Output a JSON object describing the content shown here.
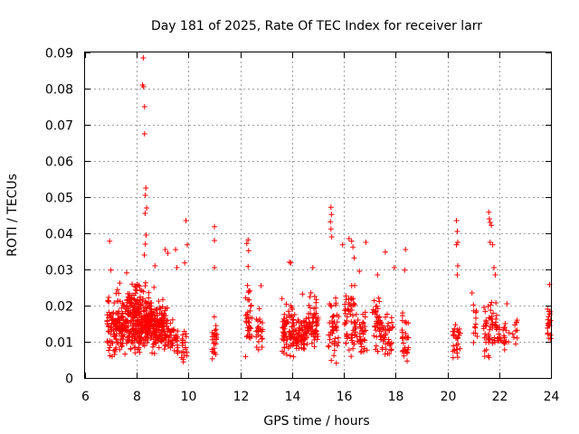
{
  "chart_data": {
    "type": "scatter",
    "title": "Day 181 of 2025, Rate Of TEC Index for receiver larr",
    "xlabel": "GPS time / hours",
    "ylabel": "ROTI / TECUs",
    "xlim": [
      6,
      24
    ],
    "ylim": [
      0,
      0.09
    ],
    "xticks": [
      6,
      8,
      10,
      12,
      14,
      16,
      18,
      20,
      22,
      24
    ],
    "xtick_labels": [
      "6",
      "8",
      "10",
      "12",
      "14",
      "16",
      "18",
      "20",
      "22",
      "24"
    ],
    "yticks": [
      0,
      0.01,
      0.02,
      0.03,
      0.04,
      0.05,
      0.06,
      0.07,
      0.08,
      0.09
    ],
    "ytick_labels": [
      "0",
      "0.01",
      "0.02",
      "0.03",
      "0.04",
      "0.05",
      "0.06",
      "0.07",
      "0.08",
      "0.09"
    ],
    "grid": true,
    "marker": "plus",
    "color": "#ff0000",
    "series": [
      {
        "name": "ROTI",
        "clusters": [
          {
            "x_start": 6.85,
            "x_end": 7.2,
            "y_min": 0.003,
            "y_max": 0.03,
            "count": 60
          },
          {
            "x_start": 7.2,
            "x_end": 7.6,
            "y_min": 0.005,
            "y_max": 0.028,
            "count": 90
          },
          {
            "x_start": 7.6,
            "x_end": 8.0,
            "y_min": 0.005,
            "y_max": 0.032,
            "count": 120
          },
          {
            "x_start": 8.0,
            "x_end": 8.4,
            "y_min": 0.005,
            "y_max": 0.03,
            "count": 130
          },
          {
            "x_start": 8.4,
            "x_end": 8.8,
            "y_min": 0.005,
            "y_max": 0.027,
            "count": 110
          },
          {
            "x_start": 8.8,
            "x_end": 9.2,
            "y_min": 0.005,
            "y_max": 0.025,
            "count": 80
          },
          {
            "x_start": 9.2,
            "x_end": 9.6,
            "y_min": 0.005,
            "y_max": 0.02,
            "count": 40
          },
          {
            "x_start": 9.7,
            "x_end": 9.95,
            "y_min": 0.003,
            "y_max": 0.018,
            "count": 20
          },
          {
            "x_start": 10.9,
            "x_end": 11.1,
            "y_min": 0.004,
            "y_max": 0.018,
            "count": 25
          },
          {
            "x_start": 12.2,
            "x_end": 12.45,
            "y_min": 0.005,
            "y_max": 0.03,
            "count": 35
          },
          {
            "x_start": 12.6,
            "x_end": 12.9,
            "y_min": 0.006,
            "y_max": 0.02,
            "count": 25
          },
          {
            "x_start": 13.6,
            "x_end": 14.1,
            "y_min": 0.005,
            "y_max": 0.023,
            "count": 80
          },
          {
            "x_start": 14.1,
            "x_end": 14.6,
            "y_min": 0.006,
            "y_max": 0.02,
            "count": 70
          },
          {
            "x_start": 14.6,
            "x_end": 15.0,
            "y_min": 0.006,
            "y_max": 0.026,
            "count": 60
          },
          {
            "x_start": 15.4,
            "x_end": 15.8,
            "y_min": 0.003,
            "y_max": 0.026,
            "count": 45
          },
          {
            "x_start": 16.0,
            "x_end": 16.5,
            "y_min": 0.004,
            "y_max": 0.03,
            "count": 60
          },
          {
            "x_start": 16.5,
            "x_end": 16.9,
            "y_min": 0.005,
            "y_max": 0.02,
            "count": 35
          },
          {
            "x_start": 17.1,
            "x_end": 17.5,
            "y_min": 0.004,
            "y_max": 0.027,
            "count": 45
          },
          {
            "x_start": 17.5,
            "x_end": 17.9,
            "y_min": 0.004,
            "y_max": 0.02,
            "count": 35
          },
          {
            "x_start": 18.2,
            "x_end": 18.5,
            "y_min": 0.003,
            "y_max": 0.022,
            "count": 30
          },
          {
            "x_start": 20.2,
            "x_end": 20.5,
            "y_min": 0.004,
            "y_max": 0.02,
            "count": 30
          },
          {
            "x_start": 21.0,
            "x_end": 21.15,
            "y_min": 0.008,
            "y_max": 0.024,
            "count": 12
          },
          {
            "x_start": 21.4,
            "x_end": 21.9,
            "y_min": 0.005,
            "y_max": 0.025,
            "count": 55
          },
          {
            "x_start": 21.9,
            "x_end": 22.4,
            "y_min": 0.006,
            "y_max": 0.02,
            "count": 30
          },
          {
            "x_start": 22.5,
            "x_end": 22.7,
            "y_min": 0.009,
            "y_max": 0.018,
            "count": 10
          },
          {
            "x_start": 23.85,
            "x_end": 24.0,
            "y_min": 0.007,
            "y_max": 0.025,
            "count": 20
          }
        ],
        "outliers": [
          {
            "x": 8.25,
            "y": 0.0885
          },
          {
            "x": 8.22,
            "y": 0.081
          },
          {
            "x": 8.26,
            "y": 0.0805
          },
          {
            "x": 8.3,
            "y": 0.075
          },
          {
            "x": 8.3,
            "y": 0.0675
          },
          {
            "x": 8.35,
            "y": 0.0525
          },
          {
            "x": 8.33,
            "y": 0.0505
          },
          {
            "x": 8.38,
            "y": 0.047
          },
          {
            "x": 8.32,
            "y": 0.0455
          },
          {
            "x": 8.36,
            "y": 0.0395
          },
          {
            "x": 8.33,
            "y": 0.037
          },
          {
            "x": 8.29,
            "y": 0.034
          },
          {
            "x": 6.95,
            "y": 0.0378
          },
          {
            "x": 7.0,
            "y": 0.0298
          },
          {
            "x": 8.7,
            "y": 0.031
          },
          {
            "x": 9.1,
            "y": 0.0355
          },
          {
            "x": 9.2,
            "y": 0.0345
          },
          {
            "x": 9.5,
            "y": 0.0355
          },
          {
            "x": 9.55,
            "y": 0.0305
          },
          {
            "x": 9.9,
            "y": 0.0435
          },
          {
            "x": 9.95,
            "y": 0.0368
          },
          {
            "x": 9.85,
            "y": 0.0318
          },
          {
            "x": 11.0,
            "y": 0.0418
          },
          {
            "x": 11.0,
            "y": 0.038
          },
          {
            "x": 11.0,
            "y": 0.0305
          },
          {
            "x": 12.25,
            "y": 0.0372
          },
          {
            "x": 12.3,
            "y": 0.0382
          },
          {
            "x": 12.32,
            "y": 0.0352
          },
          {
            "x": 12.3,
            "y": 0.0308
          },
          {
            "x": 12.8,
            "y": 0.0255
          },
          {
            "x": 13.9,
            "y": 0.032
          },
          {
            "x": 13.95,
            "y": 0.0318
          },
          {
            "x": 14.4,
            "y": 0.0232
          },
          {
            "x": 14.8,
            "y": 0.0305
          },
          {
            "x": 15.5,
            "y": 0.0472
          },
          {
            "x": 15.52,
            "y": 0.0452
          },
          {
            "x": 15.48,
            "y": 0.0432
          },
          {
            "x": 15.5,
            "y": 0.0412
          },
          {
            "x": 15.53,
            "y": 0.039
          },
          {
            "x": 15.95,
            "y": 0.0368
          },
          {
            "x": 16.2,
            "y": 0.0385
          },
          {
            "x": 16.3,
            "y": 0.0378
          },
          {
            "x": 16.35,
            "y": 0.0362
          },
          {
            "x": 16.4,
            "y": 0.0332
          },
          {
            "x": 16.6,
            "y": 0.0295
          },
          {
            "x": 16.85,
            "y": 0.0375
          },
          {
            "x": 17.3,
            "y": 0.0285
          },
          {
            "x": 17.6,
            "y": 0.0348
          },
          {
            "x": 17.95,
            "y": 0.0305
          },
          {
            "x": 18.38,
            "y": 0.0355
          },
          {
            "x": 18.35,
            "y": 0.0298
          },
          {
            "x": 20.35,
            "y": 0.0435
          },
          {
            "x": 20.38,
            "y": 0.0405
          },
          {
            "x": 20.4,
            "y": 0.0375
          },
          {
            "x": 20.35,
            "y": 0.0368
          },
          {
            "x": 20.4,
            "y": 0.031
          },
          {
            "x": 20.38,
            "y": 0.0285
          },
          {
            "x": 20.95,
            "y": 0.0235
          },
          {
            "x": 21.6,
            "y": 0.0458
          },
          {
            "x": 21.62,
            "y": 0.044
          },
          {
            "x": 21.65,
            "y": 0.043
          },
          {
            "x": 21.7,
            "y": 0.0422
          },
          {
            "x": 21.65,
            "y": 0.0375
          },
          {
            "x": 21.75,
            "y": 0.0368
          },
          {
            "x": 21.8,
            "y": 0.0305
          },
          {
            "x": 21.85,
            "y": 0.0285
          },
          {
            "x": 22.3,
            "y": 0.0205
          },
          {
            "x": 23.95,
            "y": 0.0258
          }
        ]
      }
    ]
  }
}
